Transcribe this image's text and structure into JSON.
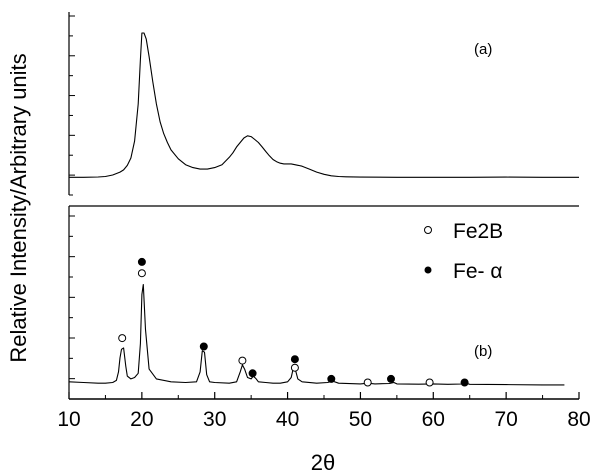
{
  "chart_data": {
    "type": "line",
    "xlabel": "2θ",
    "ylabel": "Relative Intensity/Arbitrary units",
    "xlim": [
      10,
      80
    ],
    "x_ticks": [
      "10",
      "20",
      "30",
      "40",
      "50",
      "60",
      "70",
      "80"
    ],
    "grid": false,
    "panels": [
      {
        "label": "(a)",
        "series": [
          {
            "x": [
              10,
              12,
              14,
              15,
              16,
              17,
              17.5,
              18,
              18.5,
              19,
              19.5,
              19.8,
              20,
              20.3,
              20.6,
              21,
              21.5,
              22,
              22.5,
              23,
              23.5,
              24,
              25,
              26,
              27,
              28,
              29,
              30,
              31,
              32,
              32.5,
              33,
              33.5,
              34,
              34.5,
              35,
              35.5,
              36,
              36.5,
              37,
              37.5,
              38,
              38.5,
              39,
              39.5,
              40,
              40.5,
              41,
              41.5,
              42,
              43,
              44,
              45,
              46,
              47,
              48,
              50,
              55,
              60,
              65,
              70,
              75,
              80
            ],
            "y": [
              0.5,
              0.5,
              0.7,
              1.0,
              2.0,
              4.0,
              5.5,
              8.5,
              13.5,
              25.0,
              50.0,
              80.0,
              98.0,
              98.0,
              94.0,
              82.0,
              65.0,
              50.0,
              38.0,
              30.0,
              24.0,
              19.0,
              13.0,
              9.0,
              7.0,
              6.0,
              6.0,
              7.0,
              9.0,
              14.0,
              17.0,
              21.0,
              24.0,
              27.0,
              28.5,
              28.0,
              26.0,
              24.0,
              21.0,
              18.0,
              15.0,
              12.5,
              11.0,
              10.0,
              9.5,
              9.5,
              9.5,
              9.0,
              8.5,
              8.0,
              6.0,
              4.0,
              2.5,
              1.5,
              1.0,
              0.8,
              0.6,
              0.5,
              0.5,
              0.5,
              0.6,
              0.5,
              0.5
            ]
          }
        ]
      },
      {
        "label": "(b)",
        "series": [
          {
            "x": [
              10,
              12,
              14,
              15,
              16,
              16.5,
              16.8,
              17,
              17.2,
              17.5,
              17.8,
              18,
              18.5,
              19,
              19.5,
              19.8,
              20,
              20.2,
              20.5,
              21,
              22,
              24,
              26,
              27.5,
              28,
              28.3,
              28.6,
              28.9,
              29.3,
              30,
              32,
              33,
              33.5,
              33.8,
              34.1,
              34.5,
              35,
              35.3,
              35.7,
              36,
              37,
              38,
              39,
              40,
              40.5,
              40.8,
              41.1,
              41.4,
              42,
              44,
              45.5,
              46.2,
              47,
              50,
              51,
              52,
              54,
              54.6,
              55,
              58,
              60,
              62,
              64,
              64.5,
              65,
              70,
              75,
              78
            ],
            "y": [
              3.0,
              2.5,
              2.0,
              2.0,
              2.5,
              4.0,
              10.0,
              20.0,
              26.0,
              27.0,
              14.0,
              7.0,
              5.0,
              6.0,
              9.0,
              30.0,
              65.0,
              72.0,
              40.0,
              12.0,
              5.0,
              3.0,
              2.5,
              3.0,
              10.0,
              25.0,
              24.0,
              8.0,
              3.0,
              2.5,
              2.0,
              3.0,
              10.0,
              15.0,
              12.0,
              6.0,
              5.0,
              7.0,
              5.0,
              3.0,
              2.5,
              2.0,
              2.0,
              3.0,
              6.0,
              13.0,
              11.0,
              5.0,
              3.0,
              2.0,
              2.5,
              3.5,
              2.0,
              1.5,
              2.0,
              1.5,
              1.8,
              2.5,
              1.5,
              1.3,
              1.5,
              1.2,
              1.4,
              2.0,
              1.2,
              1.0,
              0.8,
              0.8
            ]
          }
        ],
        "markers": [
          {
            "phase": "Fe2B",
            "x": 17.3,
            "y": 34
          },
          {
            "phase": "Fe2B",
            "x": 20.0,
            "y": 80
          },
          {
            "phase": "Fe2B",
            "x": 33.8,
            "y": 18
          },
          {
            "phase": "Fe2B",
            "x": 41.0,
            "y": 13
          },
          {
            "phase": "Fe2B",
            "x": 51.0,
            "y": 2.5
          },
          {
            "phase": "Fe2B",
            "x": 59.5,
            "y": 2.5
          },
          {
            "phase": "Fe- α",
            "x": 20.0,
            "y": 88
          },
          {
            "phase": "Fe- α",
            "x": 28.5,
            "y": 28
          },
          {
            "phase": "Fe- α",
            "x": 35.2,
            "y": 9
          },
          {
            "phase": "Fe- α",
            "x": 41.0,
            "y": 19
          },
          {
            "phase": "Fe- α",
            "x": 46.0,
            "y": 5
          },
          {
            "phase": "Fe- α",
            "x": 54.2,
            "y": 5
          },
          {
            "phase": "Fe- α",
            "x": 64.3,
            "y": 2.5
          }
        ]
      }
    ],
    "legend": {
      "placement": "top-right of panel (b)",
      "entries": [
        {
          "name": "Fe2B",
          "marker": "open-circle"
        },
        {
          "name": "Fe- α",
          "marker": "filled-circle"
        }
      ]
    }
  }
}
